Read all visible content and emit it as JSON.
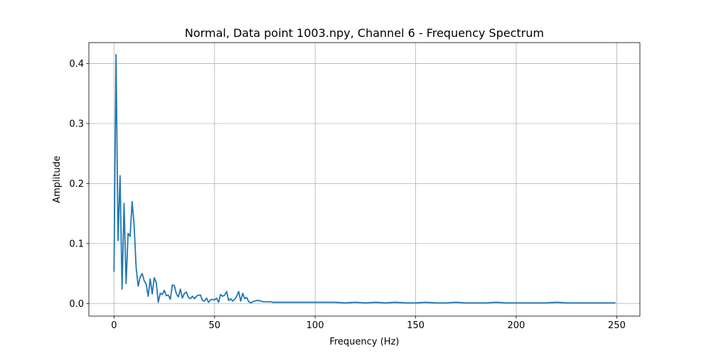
{
  "chart_data": {
    "type": "line",
    "title": "Normal, Data point 1003.npy, Channel 6 - Frequency Spectrum",
    "xlabel": "Frequency (Hz)",
    "ylabel": "Amplitude",
    "xlim": [
      -12.5,
      261.5
    ],
    "ylim": [
      -0.021,
      0.435
    ],
    "xticks": [
      0,
      50,
      100,
      150,
      200,
      250
    ],
    "yticks": [
      0.0,
      0.1,
      0.2,
      0.3,
      0.4
    ],
    "xtick_labels": [
      "0",
      "50",
      "100",
      "150",
      "200",
      "250"
    ],
    "ytick_labels": [
      "0.0",
      "0.1",
      "0.2",
      "0.3",
      "0.4"
    ],
    "grid": true,
    "legend": false,
    "series": [
      {
        "color": "#1f77b4",
        "x": [
          0,
          1,
          2,
          3,
          4,
          5,
          6,
          7,
          8,
          9,
          10,
          11,
          12,
          13,
          14,
          15,
          16,
          17,
          18,
          19,
          20,
          21,
          22,
          23,
          24,
          25,
          26,
          27,
          28,
          29,
          30,
          31,
          32,
          33,
          34,
          35,
          36,
          37,
          38,
          39,
          40,
          41,
          42,
          43,
          44,
          45,
          46,
          47,
          48,
          49,
          50,
          51,
          52,
          53,
          54,
          55,
          56,
          57,
          58,
          59,
          60,
          61,
          62,
          63,
          64,
          65,
          66,
          67,
          68,
          69,
          70,
          71,
          72,
          73,
          74,
          75,
          76,
          77,
          78,
          79,
          80,
          82,
          84,
          86,
          88,
          90,
          92,
          94,
          96,
          98,
          100,
          105,
          110,
          115,
          120,
          125,
          130,
          135,
          140,
          145,
          150,
          155,
          160,
          165,
          170,
          175,
          180,
          185,
          190,
          195,
          200,
          205,
          210,
          215,
          220,
          225,
          230,
          235,
          240,
          245,
          249
        ],
        "y": [
          0.054,
          0.415,
          0.105,
          0.213,
          0.024,
          0.167,
          0.033,
          0.117,
          0.112,
          0.17,
          0.13,
          0.06,
          0.029,
          0.044,
          0.05,
          0.038,
          0.032,
          0.012,
          0.041,
          0.016,
          0.043,
          0.035,
          0.002,
          0.017,
          0.015,
          0.022,
          0.013,
          0.014,
          0.007,
          0.031,
          0.03,
          0.016,
          0.011,
          0.024,
          0.009,
          0.017,
          0.019,
          0.01,
          0.008,
          0.012,
          0.008,
          0.012,
          0.014,
          0.014,
          0.005,
          0.004,
          0.009,
          0.002,
          0.006,
          0.007,
          0.006,
          0.009,
          0.002,
          0.015,
          0.012,
          0.014,
          0.02,
          0.005,
          0.008,
          0.004,
          0.007,
          0.012,
          0.02,
          0.004,
          0.017,
          0.008,
          0.01,
          0.003,
          0.001,
          0.003,
          0.004,
          0.005,
          0.005,
          0.004,
          0.003,
          0.003,
          0.003,
          0.003,
          0.003,
          0.002,
          0.002,
          0.002,
          0.002,
          0.002,
          0.002,
          0.002,
          0.002,
          0.002,
          0.002,
          0.002,
          0.002,
          0.002,
          0.002,
          0.001,
          0.002,
          0.001,
          0.002,
          0.001,
          0.002,
          0.001,
          0.001,
          0.002,
          0.001,
          0.001,
          0.002,
          0.001,
          0.001,
          0.001,
          0.002,
          0.001,
          0.001,
          0.001,
          0.001,
          0.001,
          0.002,
          0.001,
          0.001,
          0.001,
          0.001,
          0.001,
          0.001
        ]
      }
    ]
  }
}
